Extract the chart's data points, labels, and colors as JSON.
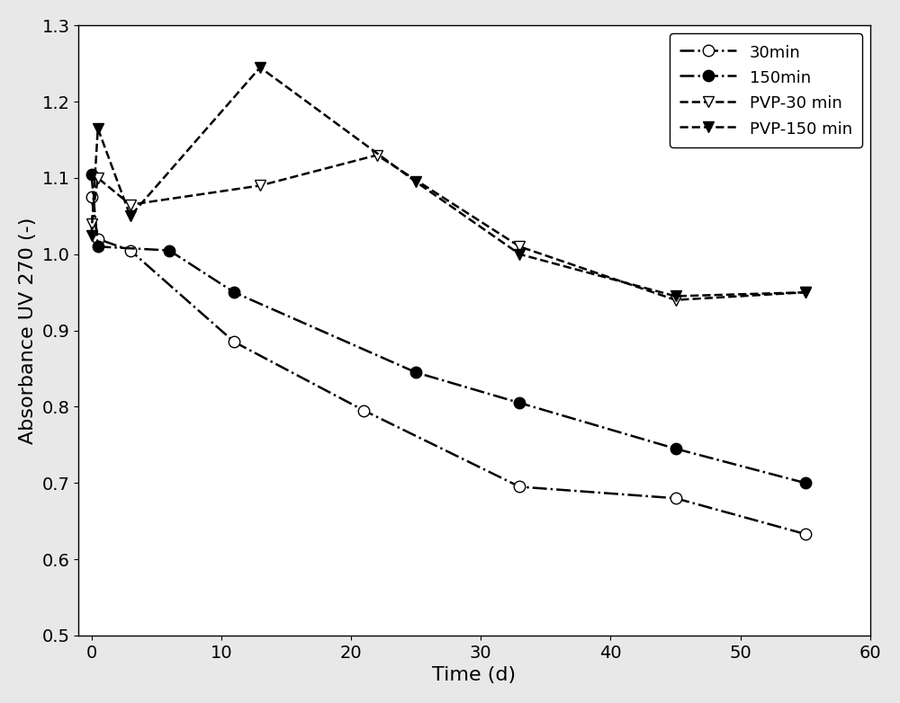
{
  "series": {
    "30min": {
      "x": [
        0,
        0.5,
        3,
        11,
        21,
        33,
        45,
        55
      ],
      "y": [
        1.075,
        1.02,
        1.005,
        0.885,
        0.795,
        0.695,
        0.68,
        0.633
      ],
      "linestyle": "-.",
      "marker": "o",
      "markerfacecolor": "white",
      "color": "black",
      "label": "30min"
    },
    "150min": {
      "x": [
        0,
        0.5,
        6,
        11,
        25,
        33,
        45,
        55
      ],
      "y": [
        1.105,
        1.01,
        1.005,
        0.95,
        0.845,
        0.805,
        0.745,
        0.7
      ],
      "linestyle": "-.",
      "marker": "o",
      "markerfacecolor": "black",
      "color": "black",
      "label": "150min"
    },
    "PVP-30min": {
      "x": [
        0,
        0.5,
        3,
        13,
        22,
        33,
        45,
        55
      ],
      "y": [
        1.04,
        1.1,
        1.065,
        1.09,
        1.13,
        1.01,
        0.94,
        0.95
      ],
      "linestyle": "--",
      "marker": "v",
      "markerfacecolor": "white",
      "color": "black",
      "label": "PVP-30 min"
    },
    "PVP-150min": {
      "x": [
        0,
        0.5,
        3,
        13,
        25,
        33,
        45,
        55
      ],
      "y": [
        1.025,
        1.165,
        1.05,
        1.245,
        1.095,
        1.0,
        0.945,
        0.95
      ],
      "linestyle": "--",
      "marker": "v",
      "markerfacecolor": "black",
      "color": "black",
      "label": "PVP-150 min"
    }
  },
  "xlabel": "Time (d)",
  "ylabel": "Absorbance UV 270 (-)",
  "xlim": [
    -1,
    60
  ],
  "ylim": [
    0.5,
    1.3
  ],
  "xticks": [
    0,
    10,
    20,
    30,
    40,
    50,
    60
  ],
  "yticks": [
    0.5,
    0.6,
    0.7,
    0.8,
    0.9,
    1.0,
    1.1,
    1.2,
    1.3
  ],
  "figsize": [
    10.0,
    7.82
  ],
  "dpi": 100,
  "markersize": 9,
  "linewidth": 1.8,
  "legend_fontsize": 13,
  "axis_fontsize": 16,
  "tick_fontsize": 14
}
